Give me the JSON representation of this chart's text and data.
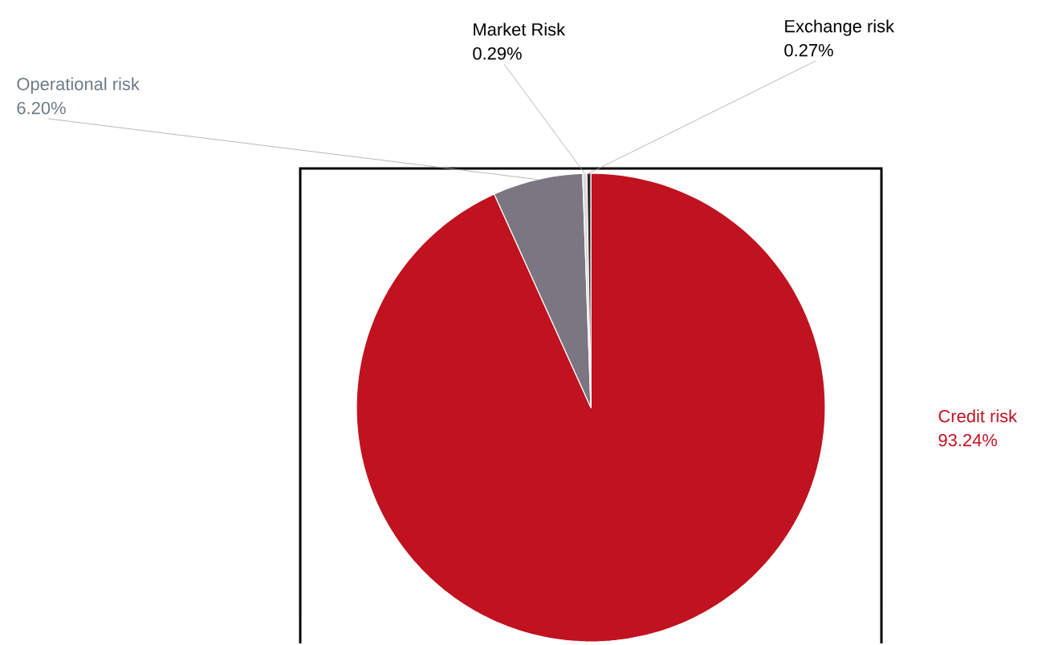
{
  "chart_data": {
    "type": "pie",
    "categories": [
      "Credit risk",
      "Operational risk",
      "Market Risk",
      "Exchange risk"
    ],
    "values": [
      93.24,
      6.2,
      0.29,
      0.27
    ],
    "value_labels": [
      "93.24%",
      "6.20%",
      "0.29%",
      "0.27%"
    ],
    "colors": [
      "#c1121f",
      "#7a7682",
      "#d9d9d9",
      "#2a2a2a"
    ]
  }
}
